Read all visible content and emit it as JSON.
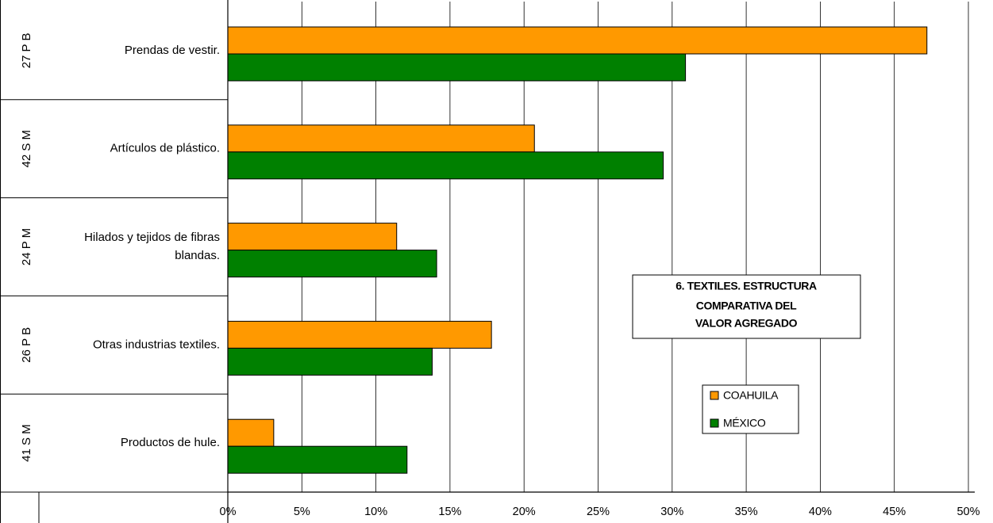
{
  "chart_data": {
    "type": "bar",
    "orientation": "horizontal",
    "title_lines": [
      "6. TEXTILES. ESTRUCTURA",
      "COMPARATIVA DEL",
      "VALOR AGREGADO"
    ],
    "groups": [
      "27 P B",
      "42 S M",
      "24 P M",
      "26 P B",
      "41 S M"
    ],
    "categories": [
      [
        "Prendas de vestir."
      ],
      [
        "Artículos de plástico."
      ],
      [
        "Hilados y tejidos de fibras",
        "blandas."
      ],
      [
        "Otras industrias textiles."
      ],
      [
        "Productos de hule."
      ]
    ],
    "series": [
      {
        "name": "COAHUILA",
        "color": "#FF9900",
        "values": [
          47.2,
          20.7,
          11.4,
          17.8,
          3.1
        ]
      },
      {
        "name": "MÉXICO",
        "color": "#008000",
        "values": [
          30.9,
          29.4,
          14.1,
          13.8,
          12.1
        ]
      }
    ],
    "xlim": [
      0,
      50
    ],
    "xticks": [
      "0%",
      "5%",
      "10%",
      "15%",
      "20%",
      "25%",
      "30%",
      "35%",
      "40%",
      "45%",
      "50%"
    ],
    "grid": true,
    "legend_position": "right"
  }
}
